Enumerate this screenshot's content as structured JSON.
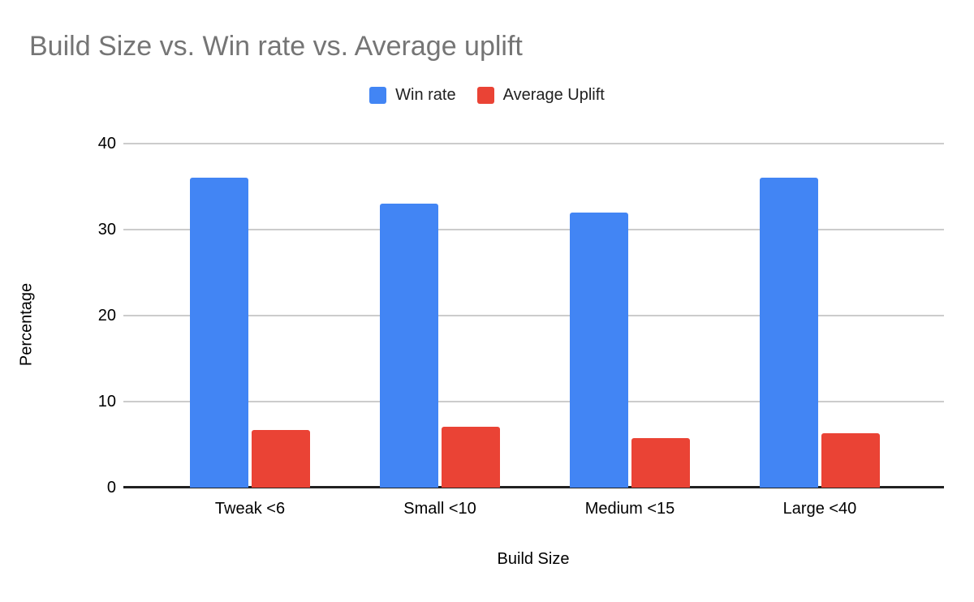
{
  "chart_data": {
    "type": "bar",
    "title": "Build Size vs. Win rate vs. Average uplift",
    "title_color": "#757575",
    "categories": [
      "Tweak <6",
      "Small <10",
      "Medium <15",
      "Large <40"
    ],
    "series": [
      {
        "name": "Win rate",
        "color": "#4285F4",
        "values": [
          36,
          33,
          32,
          36
        ]
      },
      {
        "name": "Average Uplift",
        "color": "#EA4335",
        "values": [
          6.7,
          7.1,
          5.8,
          6.3
        ]
      }
    ],
    "xlabel": "Build Size",
    "ylabel": "Percentage",
    "ylim": [
      0,
      40
    ],
    "yticks": [
      0,
      10,
      20,
      30,
      40
    ],
    "grid": true,
    "legend_position": "top",
    "gridline_color": "#cccccc",
    "axis_line_color": "#212121",
    "tick_text_color": "#000000",
    "background_color": "#ffffff"
  }
}
